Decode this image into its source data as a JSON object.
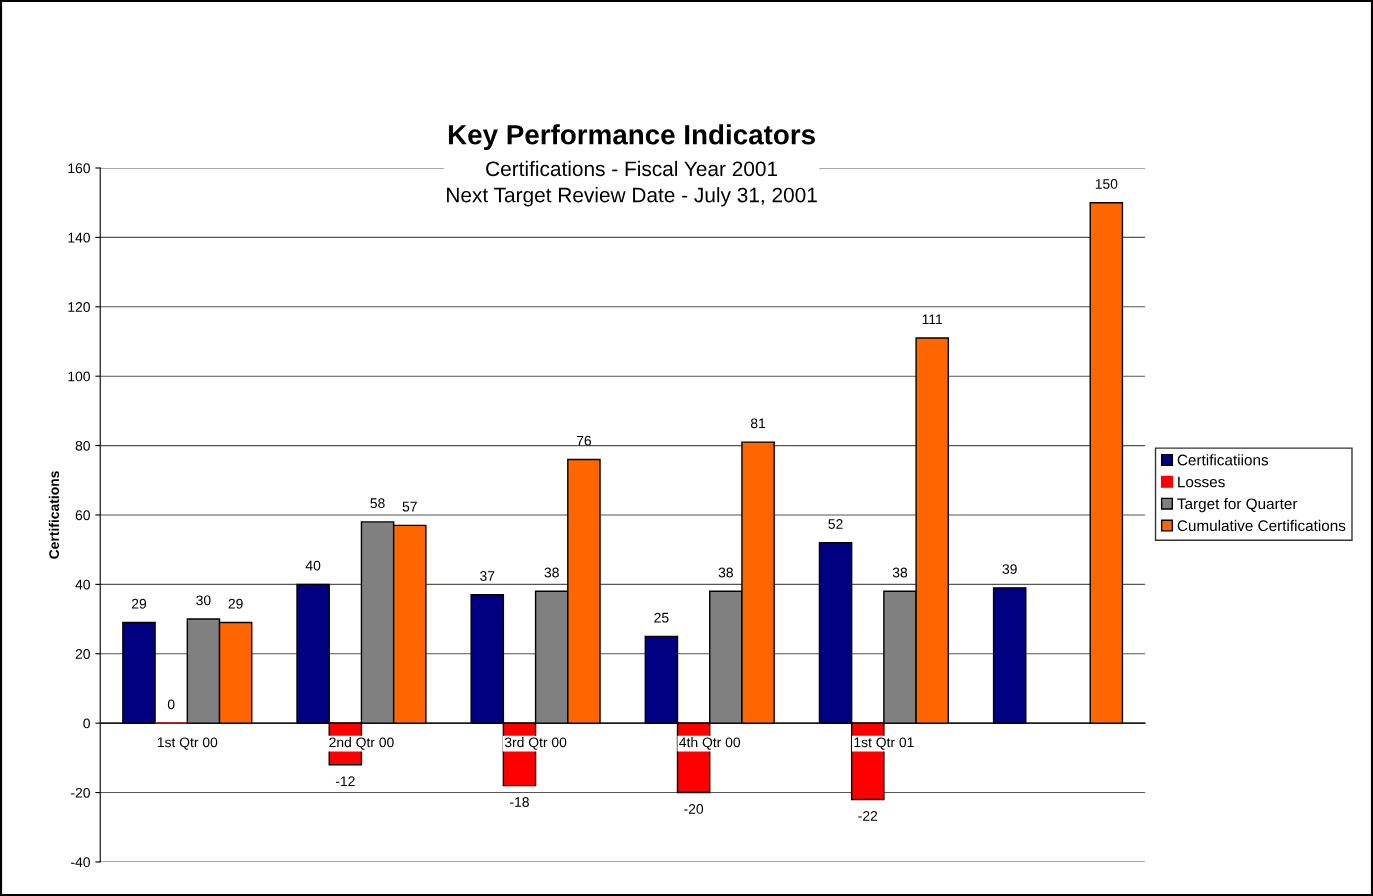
{
  "chart_data": {
    "type": "bar",
    "title": "Key Performance Indicators",
    "subtitle": "Certifications - Fiscal Year 2001\nNext Target Review Date - July 31, 2001",
    "ylabel": "Certifications",
    "categories": [
      "1st Qtr 00",
      "2nd Qtr 00",
      "3rd Qtr 00",
      "4th Qtr 00",
      "1st Qtr 01",
      null
    ],
    "series": [
      {
        "name": "Certificatiions",
        "color": "#000080",
        "values": [
          29,
          40,
          37,
          25,
          52,
          39
        ]
      },
      {
        "name": "Losses",
        "color": "#ff0000",
        "values": [
          0,
          -12,
          -18,
          -20,
          -22,
          null
        ]
      },
      {
        "name": "Target for Quarter",
        "color": "#808080",
        "values": [
          30,
          58,
          38,
          38,
          38,
          null
        ]
      },
      {
        "name": "Cumulative Certifications",
        "color": "#ff6600",
        "values": [
          29,
          57,
          76,
          81,
          111,
          150
        ]
      }
    ],
    "ylim": [
      -40,
      160
    ],
    "yticks": [
      -40,
      -20,
      0,
      20,
      40,
      60,
      80,
      100,
      120,
      140,
      160
    ],
    "grid": "y",
    "legend": "right",
    "data_labels": true
  }
}
